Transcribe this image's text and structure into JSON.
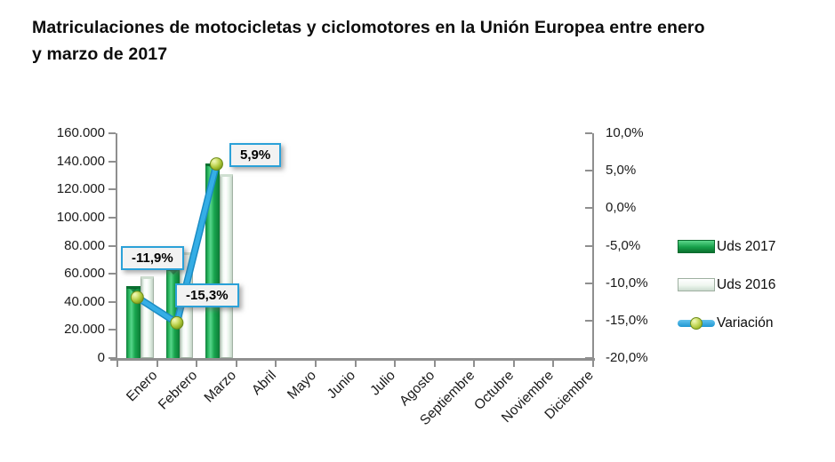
{
  "title_lines": [
    "Matriculaciones de motocicletas y ciclomotores en la Unión Europea entre enero",
    "y marzo de 2017"
  ],
  "chart_data": {
    "type": "bar",
    "subtype": "grouped bars with percent line overlay (combo)",
    "title": "Matriculaciones de motocicletas y ciclomotores en la Unión Europea entre enero y marzo de 2017",
    "categories": [
      "Enero",
      "Febrero",
      "Marzo",
      "Abril",
      "Mayo",
      "Junio",
      "Julio",
      "Agosto",
      "Septiembre",
      "Octubre",
      "Noviembre",
      "Diciembre"
    ],
    "series": [
      {
        "name": "Uds 2017",
        "type": "bar",
        "axis": "left",
        "color": "#18a54e",
        "values": [
          51400,
          64000,
          138600,
          null,
          null,
          null,
          null,
          null,
          null,
          null,
          null,
          null
        ]
      },
      {
        "name": "Uds 2016",
        "type": "bar",
        "axis": "left",
        "color": "#e9f6ec",
        "values": [
          58300,
          75500,
          130900,
          null,
          null,
          null,
          null,
          null,
          null,
          null,
          null,
          null
        ]
      },
      {
        "name": "Variación",
        "type": "line",
        "axis": "right",
        "color": "#29a4df",
        "unit": "%",
        "values": [
          -11.9,
          -15.3,
          5.9,
          null,
          null,
          null,
          null,
          null,
          null,
          null,
          null,
          null
        ]
      }
    ],
    "point_labels": [
      "-11,9%",
      "-15,3%",
      "5,9%"
    ],
    "left_axis": {
      "min": 0,
      "max": 160000,
      "step": 20000,
      "ticks": [
        "160.000",
        "140.000",
        "120.000",
        "100.000",
        "80.000",
        "60.000",
        "40.000",
        "20.000",
        "0"
      ]
    },
    "right_axis": {
      "min": -20,
      "max": 10,
      "step": 5,
      "ticks": [
        "10,0%",
        "5,0%",
        "0,0%",
        "-5,0%",
        "-10,0%",
        "-15,0%",
        "-20,0%"
      ]
    },
    "legend_position": "right",
    "grid": false,
    "plot_background": "#ffffff",
    "accent_colors": {
      "line_blue": "#29a4df",
      "marker_green": "#a9c336",
      "label_box_bg": "#f2f2f2",
      "axis_gray": "#8f8f8f"
    }
  }
}
